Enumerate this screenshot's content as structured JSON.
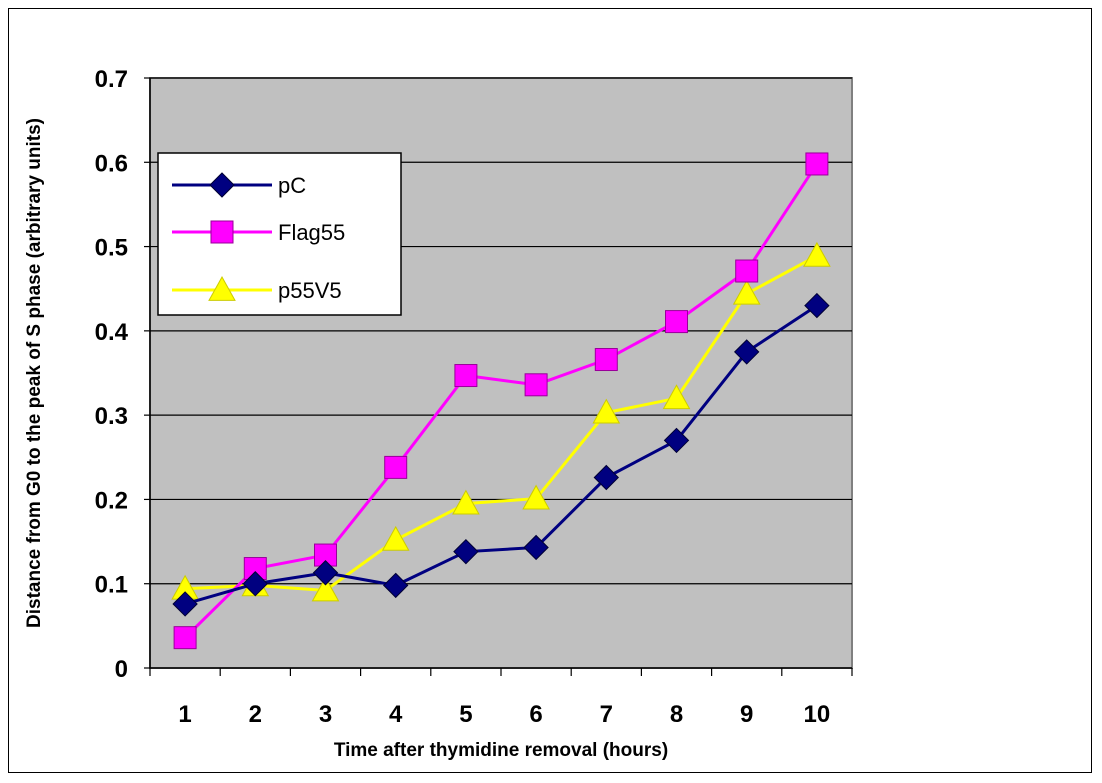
{
  "chart_data": {
    "type": "line",
    "title": "",
    "xlabel": "Time after thymidine removal (hours)",
    "ylabel": "Distance from G0 to the peak of S phase (arbitrary units)",
    "categories": [
      "1",
      "2",
      "3",
      "4",
      "5",
      "6",
      "7",
      "8",
      "9",
      "10"
    ],
    "ylim": [
      0,
      0.7
    ],
    "yticks": [
      "0",
      "0.1",
      "0.2",
      "0.3",
      "0.4",
      "0.5",
      "0.6",
      "0.7"
    ],
    "grid": true,
    "plot_background": "#c0c0c0",
    "legend_position": "top-left",
    "series": [
      {
        "name": "pC",
        "color": "#000080",
        "marker": "diamond",
        "values": [
          0.076,
          0.1,
          0.113,
          0.098,
          0.138,
          0.143,
          0.226,
          0.27,
          0.375,
          0.43
        ]
      },
      {
        "name": "Flag55",
        "color": "#ff00ff",
        "marker": "square",
        "values": [
          0.036,
          0.118,
          0.134,
          0.238,
          0.347,
          0.336,
          0.366,
          0.411,
          0.471,
          0.598
        ]
      },
      {
        "name": "p55V5",
        "color": "#ffff00",
        "marker": "triangle",
        "values": [
          0.094,
          0.098,
          0.092,
          0.152,
          0.195,
          0.201,
          0.303,
          0.32,
          0.444,
          0.489
        ]
      }
    ]
  }
}
